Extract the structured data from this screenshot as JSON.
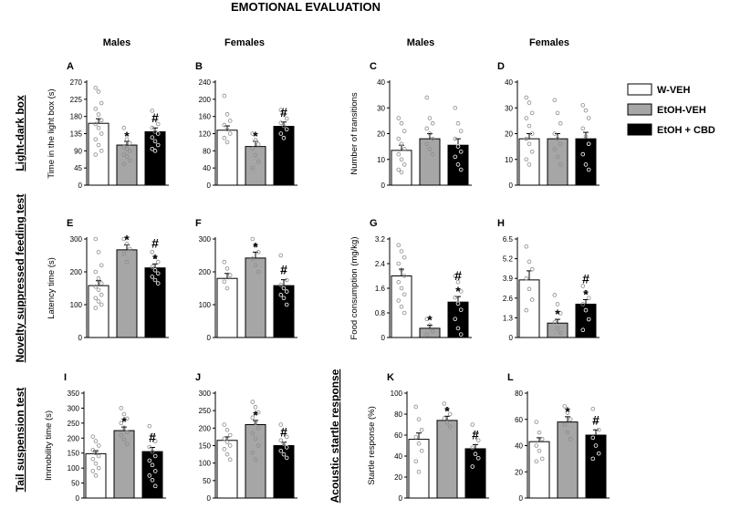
{
  "title": "EMOTIONAL EVALUATION",
  "column_headers": [
    "Males",
    "Females",
    "Males",
    "Females"
  ],
  "row_labels": [
    "Light-dark box",
    "Novelty suppressed feeding test",
    "Tail suspension test",
    "Acoustic startle response"
  ],
  "legend": [
    {
      "name": "W-VEH",
      "color": "#ffffff"
    },
    {
      "name": "EtOH-VEH",
      "color": "#a6a6a6"
    },
    {
      "name": "EtOH + CBD",
      "color": "#000000"
    }
  ],
  "chart_data": [
    {
      "type": "bar",
      "panel": "A",
      "ylabel": "Time in the light box (s)",
      "yticks": [
        0,
        45,
        90,
        135,
        180,
        225,
        270
      ],
      "ylim": [
        0,
        270
      ],
      "categories": [
        "W-VEH",
        "EtOH-VEH",
        "EtOH + CBD"
      ],
      "values": [
        162,
        105,
        140
      ],
      "errors": [
        12,
        10,
        10
      ],
      "marks": [
        "",
        "*",
        "#"
      ],
      "points": [
        [
          255,
          245,
          215,
          200,
          185,
          170,
          160,
          150,
          135,
          120,
          105,
          90,
          80
        ],
        [
          150,
          120,
          110,
          100,
          95,
          90,
          80,
          75,
          65,
          55
        ],
        [
          195,
          175,
          160,
          150,
          140,
          135,
          125,
          115,
          105,
          95,
          90
        ]
      ]
    },
    {
      "type": "bar",
      "panel": "B",
      "ylabel": "",
      "yticks": [
        0,
        40,
        80,
        120,
        160,
        200,
        240
      ],
      "ylim": [
        0,
        240
      ],
      "categories": [
        "W-VEH",
        "EtOH-VEH",
        "EtOH + CBD"
      ],
      "values": [
        128,
        90,
        137
      ],
      "errors": [
        10,
        12,
        10
      ],
      "marks": [
        "",
        "*",
        "#"
      ],
      "points": [
        [
          208,
          165,
          150,
          140,
          130,
          120,
          110,
          100
        ],
        [
          120,
          105,
          95,
          85,
          70,
          55,
          40
        ],
        [
          175,
          165,
          155,
          145,
          138,
          130,
          120,
          110
        ]
      ]
    },
    {
      "type": "bar",
      "panel": "C",
      "ylabel": "Number of transitions",
      "yticks": [
        0,
        10,
        20,
        30,
        40
      ],
      "ylim": [
        0,
        40
      ],
      "categories": [
        "W-VEH",
        "EtOH-VEH",
        "EtOH + CBD"
      ],
      "values": [
        13.5,
        18,
        15.5
      ],
      "errors": [
        2,
        2,
        2.5
      ],
      "marks": [
        "",
        "",
        ""
      ],
      "points": [
        [
          26,
          24,
          21,
          18,
          16,
          14,
          12,
          10,
          8,
          6,
          5
        ],
        [
          34,
          26,
          24,
          22,
          20,
          18,
          16,
          14,
          12
        ],
        [
          30,
          24,
          21,
          18,
          15,
          13,
          11,
          8,
          6
        ]
      ]
    },
    {
      "type": "bar",
      "panel": "D",
      "ylabel": "",
      "yticks": [
        0,
        10,
        20,
        30,
        40
      ],
      "ylim": [
        0,
        40
      ],
      "categories": [
        "W-VEH",
        "EtOH-VEH",
        "EtOH + CBD"
      ],
      "values": [
        18,
        18,
        18
      ],
      "errors": [
        2,
        2,
        2.5
      ],
      "marks": [
        "",
        "",
        ""
      ],
      "points": [
        [
          34,
          32,
          28,
          26,
          23,
          20,
          18,
          16,
          13,
          10,
          8
        ],
        [
          33,
          28,
          24,
          20,
          18,
          16,
          14,
          11,
          8
        ],
        [
          31,
          29,
          26,
          22,
          19,
          16,
          12,
          8,
          6
        ]
      ]
    },
    {
      "type": "bar",
      "panel": "E",
      "ylabel": "Latency time (s)",
      "yticks": [
        0,
        100,
        200,
        300
      ],
      "ylim": [
        0,
        300
      ],
      "categories": [
        "W-VEH",
        "EtOH-VEH",
        "EtOH + CBD"
      ],
      "values": [
        158,
        267,
        212
      ],
      "errors": [
        15,
        15,
        12
      ],
      "marks": [
        "",
        "*",
        "#\n*"
      ],
      "points": [
        [
          300,
          260,
          220,
          200,
          180,
          165,
          155,
          145,
          130,
          120,
          110,
          100,
          90
        ],
        [
          300,
          285,
          270,
          255,
          230
        ],
        [
          260,
          245,
          230,
          215,
          205,
          195,
          185,
          175,
          165
        ]
      ]
    },
    {
      "type": "bar",
      "panel": "F",
      "ylabel": "",
      "yticks": [
        0,
        100,
        200,
        300
      ],
      "ylim": [
        0,
        300
      ],
      "categories": [
        "W-VEH",
        "EtOH-VEH",
        "EtOH + CBD"
      ],
      "values": [
        180,
        242,
        158
      ],
      "errors": [
        15,
        18,
        18
      ],
      "marks": [
        "",
        "*",
        "#"
      ],
      "points": [
        [
          230,
          210,
          190,
          170,
          150
        ],
        [
          300,
          280,
          260,
          240,
          220,
          200
        ],
        [
          250,
          200,
          175,
          160,
          150,
          140,
          130,
          120,
          100
        ]
      ]
    },
    {
      "type": "bar",
      "panel": "G",
      "ylabel": "Food consumption (mg/kg)",
      "yticks": [
        0,
        0.8,
        1.6,
        2.4,
        3.2
      ],
      "ylim": [
        0,
        3.2
      ],
      "categories": [
        "W-VEH",
        "EtOH-VEH",
        "EtOH + CBD"
      ],
      "values": [
        2.0,
        0.3,
        1.15
      ],
      "errors": [
        0.22,
        0.1,
        0.18
      ],
      "marks": [
        "",
        "*",
        "#\n*"
      ],
      "points": [
        [
          3.0,
          2.8,
          2.6,
          2.4,
          2.2,
          2.0,
          1.8,
          1.6,
          1.4,
          1.2,
          1.0,
          0.8
        ],
        [
          0.6,
          0.4,
          0.2,
          0.1
        ],
        [
          2.0,
          1.8,
          1.5,
          1.3,
          1.1,
          0.9,
          0.6,
          0.3,
          0.1
        ]
      ]
    },
    {
      "type": "bar",
      "panel": "H",
      "ylabel": "",
      "yticks": [
        0,
        1.3,
        2.6,
        3.9,
        5.2,
        6.5
      ],
      "ylim": [
        0,
        6.5
      ],
      "categories": [
        "W-VEH",
        "EtOH-VEH",
        "EtOH + CBD"
      ],
      "values": [
        3.8,
        0.95,
        2.2
      ],
      "errors": [
        0.6,
        0.25,
        0.3
      ],
      "marks": [
        "",
        "*",
        "#\n*"
      ],
      "points": [
        [
          6.0,
          5.0,
          4.5,
          3.9,
          3.2,
          2.5,
          1.8
        ],
        [
          2.8,
          2.2,
          1.6,
          1.0,
          0.6,
          0.3
        ],
        [
          3.4,
          3.0,
          2.6,
          2.2,
          1.8,
          1.2,
          0.5
        ]
      ]
    },
    {
      "type": "bar",
      "panel": "I",
      "ylabel": "Immobility time (s)",
      "yticks": [
        0,
        50,
        100,
        150,
        200,
        250,
        300,
        350
      ],
      "ylim": [
        0,
        350
      ],
      "categories": [
        "W-VEH",
        "EtOH-VEH",
        "EtOH + CBD"
      ],
      "values": [
        148,
        225,
        155
      ],
      "errors": [
        10,
        12,
        14
      ],
      "marks": [
        "",
        "*",
        "#"
      ],
      "points": [
        [
          205,
          190,
          175,
          160,
          150,
          140,
          130,
          115,
          100,
          90,
          75
        ],
        [
          300,
          280,
          265,
          250,
          235,
          220,
          210,
          195,
          180
        ],
        [
          240,
          210,
          190,
          170,
          155,
          140,
          125,
          110,
          90,
          75,
          60,
          40
        ]
      ]
    },
    {
      "type": "bar",
      "panel": "J",
      "ylabel": "",
      "yticks": [
        0,
        50,
        100,
        150,
        200,
        250,
        300
      ],
      "ylim": [
        0,
        300
      ],
      "categories": [
        "W-VEH",
        "EtOH-VEH",
        "EtOH + CBD"
      ],
      "values": [
        165,
        210,
        150
      ],
      "errors": [
        10,
        12,
        10
      ],
      "marks": [
        "",
        "*",
        "#"
      ],
      "points": [
        [
          210,
          195,
          180,
          170,
          160,
          150,
          140,
          125,
          110
        ],
        [
          275,
          260,
          245,
          230,
          215,
          200,
          185,
          170,
          150,
          130,
          110
        ],
        [
          210,
          190,
          175,
          165,
          155,
          145,
          135,
          125,
          115
        ]
      ]
    },
    {
      "type": "bar",
      "panel": "K",
      "ylabel": "Startle response (%)",
      "yticks": [
        0,
        20,
        40,
        60,
        80,
        100
      ],
      "ylim": [
        0,
        100
      ],
      "categories": [
        "W-VEH",
        "EtOH-VEH",
        "EtOH + CBD"
      ],
      "values": [
        56,
        74,
        47
      ],
      "errors": [
        6,
        4,
        4
      ],
      "marks": [
        "",
        "*",
        "#"
      ],
      "points": [
        [
          87,
          75,
          65,
          58,
          52,
          45,
          35,
          25
        ],
        [
          90,
          85,
          80,
          76,
          72,
          68
        ],
        [
          70,
          62,
          55,
          48,
          42,
          38,
          30
        ]
      ]
    },
    {
      "type": "bar",
      "panel": "L",
      "ylabel": "",
      "yticks": [
        0,
        20,
        40,
        60,
        80
      ],
      "ylim": [
        0,
        80
      ],
      "categories": [
        "W-VEH",
        "EtOH-VEH",
        "EtOH + CBD"
      ],
      "values": [
        43,
        58,
        48
      ],
      "errors": [
        3,
        4,
        4
      ],
      "marks": [
        "",
        "*",
        "#"
      ],
      "points": [
        [
          58,
          50,
          45,
          40,
          36,
          30,
          28
        ],
        [
          70,
          65,
          60,
          56,
          50,
          45
        ],
        [
          68,
          58,
          52,
          46,
          40,
          34,
          30
        ]
      ]
    }
  ]
}
